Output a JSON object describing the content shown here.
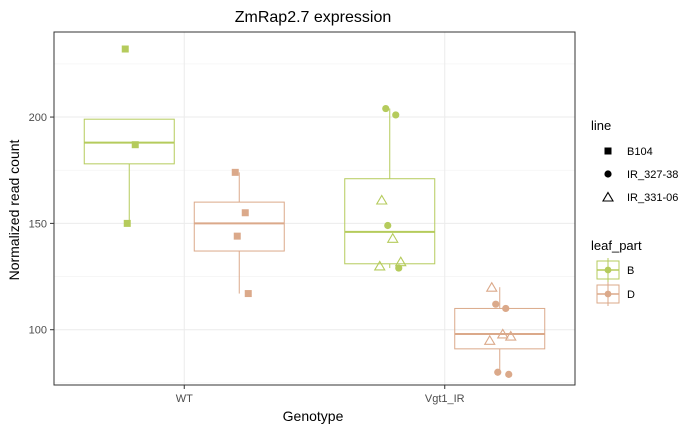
{
  "chart_data": {
    "type": "box",
    "title": "ZmRap2.7 expression",
    "xlabel": "Genotype",
    "ylabel": "Normalized read count",
    "categories": [
      "WT",
      "Vgt1_IR"
    ],
    "yticks": [
      100,
      150,
      200
    ],
    "ylim": [
      74,
      240
    ],
    "grid": true,
    "legend_position": "right",
    "colors": {
      "B": "#b5cb5c",
      "D": "#dba98a"
    },
    "legends": [
      {
        "title": "line",
        "entries": [
          {
            "label": "B104",
            "shape": "square"
          },
          {
            "label": "IR_327-38",
            "shape": "circle"
          },
          {
            "label": "IR_331-06",
            "shape": "triangle"
          }
        ]
      },
      {
        "title": "leaf_part",
        "entries": [
          {
            "label": "B",
            "color": "#b5cb5c"
          },
          {
            "label": "D",
            "color": "#dba98a"
          }
        ]
      }
    ],
    "boxes": [
      {
        "category": "WT",
        "leaf_part": "B",
        "whisker_low": 150,
        "q1": 178,
        "median": 188,
        "q3": 199,
        "whisker_high": 199
      },
      {
        "category": "WT",
        "leaf_part": "D",
        "whisker_low": 117,
        "q1": 137,
        "median": 150,
        "q3": 160,
        "whisker_high": 174
      },
      {
        "category": "Vgt1_IR",
        "leaf_part": "B",
        "whisker_low": 129,
        "q1": 131,
        "median": 146,
        "q3": 171,
        "whisker_high": 204
      },
      {
        "category": "Vgt1_IR",
        "leaf_part": "D",
        "whisker_low": 79,
        "q1": 91,
        "median": 98,
        "q3": 110,
        "whisker_high": 120
      }
    ],
    "points": [
      {
        "category": "WT",
        "leaf_part": "B",
        "line": "B104",
        "y": 232
      },
      {
        "category": "WT",
        "leaf_part": "B",
        "line": "B104",
        "y": 187
      },
      {
        "category": "WT",
        "leaf_part": "B",
        "line": "B104",
        "y": 150
      },
      {
        "category": "WT",
        "leaf_part": "D",
        "line": "B104",
        "y": 174
      },
      {
        "category": "WT",
        "leaf_part": "D",
        "line": "B104",
        "y": 155
      },
      {
        "category": "WT",
        "leaf_part": "D",
        "line": "B104",
        "y": 144
      },
      {
        "category": "WT",
        "leaf_part": "D",
        "line": "B104",
        "y": 117
      },
      {
        "category": "Vgt1_IR",
        "leaf_part": "B",
        "line": "IR_327-38",
        "y": 204
      },
      {
        "category": "Vgt1_IR",
        "leaf_part": "B",
        "line": "IR_327-38",
        "y": 201
      },
      {
        "category": "Vgt1_IR",
        "leaf_part": "B",
        "line": "IR_327-38",
        "y": 149
      },
      {
        "category": "Vgt1_IR",
        "leaf_part": "B",
        "line": "IR_327-38",
        "y": 129
      },
      {
        "category": "Vgt1_IR",
        "leaf_part": "B",
        "line": "IR_331-06",
        "y": 161
      },
      {
        "category": "Vgt1_IR",
        "leaf_part": "B",
        "line": "IR_331-06",
        "y": 143
      },
      {
        "category": "Vgt1_IR",
        "leaf_part": "B",
        "line": "IR_331-06",
        "y": 132
      },
      {
        "category": "Vgt1_IR",
        "leaf_part": "B",
        "line": "IR_331-06",
        "y": 130
      },
      {
        "category": "Vgt1_IR",
        "leaf_part": "D",
        "line": "IR_327-38",
        "y": 112
      },
      {
        "category": "Vgt1_IR",
        "leaf_part": "D",
        "line": "IR_327-38",
        "y": 110
      },
      {
        "category": "Vgt1_IR",
        "leaf_part": "D",
        "line": "IR_327-38",
        "y": 80
      },
      {
        "category": "Vgt1_IR",
        "leaf_part": "D",
        "line": "IR_327-38",
        "y": 79
      },
      {
        "category": "Vgt1_IR",
        "leaf_part": "D",
        "line": "IR_331-06",
        "y": 120
      },
      {
        "category": "Vgt1_IR",
        "leaf_part": "D",
        "line": "IR_331-06",
        "y": 98
      },
      {
        "category": "Vgt1_IR",
        "leaf_part": "D",
        "line": "IR_331-06",
        "y": 97
      },
      {
        "category": "Vgt1_IR",
        "leaf_part": "D",
        "line": "IR_331-06",
        "y": 95
      }
    ]
  }
}
